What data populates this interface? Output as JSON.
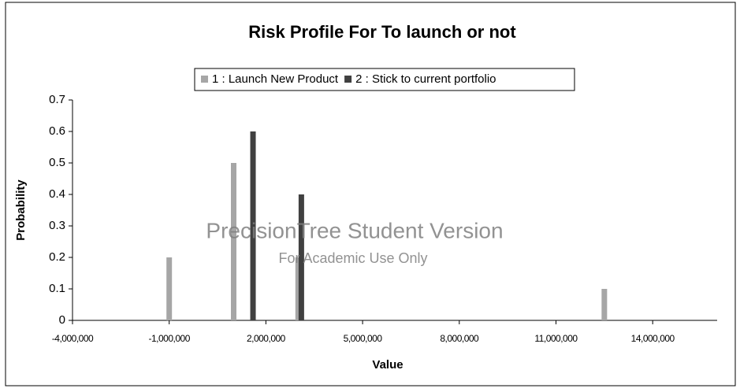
{
  "chart_data": {
    "type": "bar",
    "title": "Risk Profile For To launch or not",
    "xlabel": "Value",
    "ylabel": "Probability",
    "annotations": [
      "PrecisionTree Student Version",
      "For Academic Use Only"
    ],
    "series": [
      {
        "name": "1 : Launch New  Product",
        "color": "#a6a6a6",
        "x": [
          -1000000,
          1000000,
          3000000,
          12500000
        ],
        "values": [
          0.2,
          0.5,
          0.2,
          0.1
        ]
      },
      {
        "name": "2 : Stick to current portfolio",
        "color": "#404040",
        "x": [
          1600000,
          3100000
        ],
        "values": [
          0.6,
          0.4
        ]
      }
    ],
    "xlim": [
      -4000000,
      16000000
    ],
    "xticks": [
      {
        "value": -4000000,
        "label": "-4,000,000"
      },
      {
        "value": -1000000,
        "label": "-1,000,000"
      },
      {
        "value": 2000000,
        "label": "2,000,000"
      },
      {
        "value": 5000000,
        "label": "5,000,000"
      },
      {
        "value": 8000000,
        "label": "8,000,000"
      },
      {
        "value": 11000000,
        "label": "11,000,000"
      },
      {
        "value": 14000000,
        "label": "14,000,000"
      }
    ],
    "ylim": [
      0,
      0.7
    ],
    "yticks": [
      0,
      0.1,
      0.2,
      0.3,
      0.4,
      0.5,
      0.6,
      0.7
    ],
    "legend": "top",
    "grid": false
  }
}
